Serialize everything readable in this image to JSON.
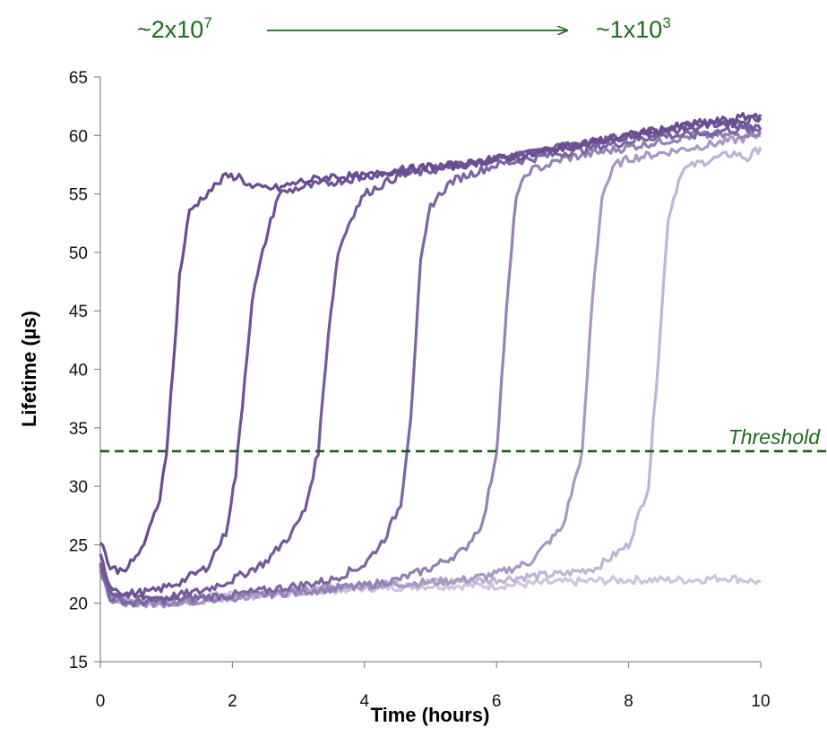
{
  "annotations": {
    "left_base": "~2x10",
    "left_exp": "7",
    "right_base": "~1x10",
    "right_exp": "3"
  },
  "threshold_label": "Threshold",
  "chart_data": {
    "type": "line",
    "xlabel": "Time (hours)",
    "ylabel": "Lifetime (µs)",
    "xlim": [
      0,
      10
    ],
    "ylim": [
      15,
      65
    ],
    "xticks": [
      0,
      2,
      4,
      6,
      8,
      10
    ],
    "yticks": [
      15,
      20,
      25,
      30,
      35,
      40,
      45,
      50,
      55,
      60,
      65
    ],
    "grid": false,
    "threshold": 33,
    "series_colors": [
      "#6a4d90",
      "#6f5395",
      "#755a9a",
      "#7d64a3",
      "#9482b3",
      "#a898c3",
      "#c0b4d6",
      "#cdc4dd"
    ],
    "series": [
      {
        "x": [
          0,
          0.15,
          0.3,
          0.5,
          0.7,
          0.9,
          1.0,
          1.1,
          1.2,
          1.35,
          1.6,
          1.9,
          2.1,
          2.3,
          2.7,
          3.0,
          3.5,
          4.0,
          4.5,
          5.0,
          5.5,
          6.0,
          6.5,
          7.0,
          7.5,
          8.0,
          8.5,
          9.0,
          9.5,
          10.0
        ],
        "y": [
          25.5,
          23,
          22.8,
          23.5,
          25.5,
          29,
          33,
          40,
          48,
          53.5,
          55,
          56.5,
          56.5,
          55.5,
          55.5,
          56,
          56.5,
          56.5,
          57,
          57.3,
          57.5,
          58,
          58.3,
          59,
          59.5,
          60,
          60.5,
          61,
          61.3,
          61.8
        ]
      },
      {
        "x": [
          0,
          0.15,
          0.4,
          0.8,
          1.2,
          1.6,
          1.9,
          2.05,
          2.15,
          2.3,
          2.5,
          2.7,
          3.0,
          3.5,
          4.0,
          4.5,
          5.0,
          5.5,
          6.0,
          6.5,
          7.0,
          7.5,
          8.0,
          8.5,
          9.0,
          9.5,
          10.0
        ],
        "y": [
          24,
          21.5,
          20.8,
          21,
          21.8,
          23,
          26,
          31,
          37,
          46,
          51,
          55,
          55.5,
          56,
          56.5,
          57,
          57.3,
          57.6,
          58,
          58.5,
          59,
          59.5,
          60,
          60.5,
          61,
          61,
          61.5
        ]
      },
      {
        "x": [
          0,
          0.15,
          0.5,
          1.0,
          1.5,
          2.0,
          2.5,
          2.9,
          3.1,
          3.3,
          3.45,
          3.6,
          3.8,
          4.0,
          4.5,
          5.0,
          5.5,
          6.0,
          6.5,
          7.0,
          7.5,
          8.0,
          8.5,
          9.0,
          9.5,
          10.0
        ],
        "y": [
          23.5,
          21,
          20.5,
          20.5,
          21,
          22,
          23.5,
          26,
          28,
          33,
          43,
          50,
          53,
          55,
          56.5,
          57,
          57.5,
          58,
          58.5,
          59,
          59.5,
          60,
          60.3,
          60.7,
          61,
          60.5
        ]
      },
      {
        "x": [
          0,
          0.15,
          0.5,
          1.0,
          2.0,
          3.0,
          3.5,
          4.0,
          4.3,
          4.55,
          4.7,
          4.85,
          5.0,
          5.3,
          5.5,
          6.0,
          6.5,
          7.0,
          7.5,
          8.0,
          8.5,
          9.0,
          9.5,
          10.0
        ],
        "y": [
          23,
          20.5,
          20,
          20.3,
          20.7,
          21.5,
          22,
          23.3,
          25.5,
          28.5,
          36,
          49,
          54,
          56,
          56.5,
          57.5,
          58,
          58.5,
          59,
          59.5,
          60,
          60,
          60.5,
          60.5
        ]
      },
      {
        "x": [
          0,
          0.15,
          0.5,
          1.0,
          2.0,
          3.0,
          4.0,
          4.5,
          5.0,
          5.5,
          5.8,
          6.0,
          6.15,
          6.3,
          6.5,
          6.8,
          7.0,
          7.5,
          8.0,
          8.5,
          9.0,
          9.5,
          10.0
        ],
        "y": [
          23,
          20.3,
          20,
          20,
          20.5,
          21,
          21.5,
          22,
          23,
          24.5,
          27,
          33,
          45,
          55,
          57,
          57.5,
          58,
          58.5,
          59,
          59.5,
          60,
          60,
          60.3
        ]
      },
      {
        "x": [
          0,
          0.15,
          0.5,
          1.0,
          2.0,
          3.0,
          4.0,
          5.0,
          5.5,
          6.0,
          6.5,
          7.0,
          7.3,
          7.45,
          7.6,
          7.8,
          8.0,
          8.5,
          9.0,
          9.5,
          10.0
        ],
        "y": [
          23,
          20.5,
          20,
          20,
          20.5,
          21,
          21.5,
          21.8,
          22,
          22.5,
          23.5,
          26.5,
          33,
          46,
          55,
          57.5,
          58,
          58.5,
          59,
          59.5,
          60
        ]
      },
      {
        "x": [
          0,
          0.15,
          0.5,
          1.0,
          2.0,
          3.0,
          4.0,
          5.0,
          6.0,
          6.5,
          7.0,
          7.5,
          8.0,
          8.3,
          8.45,
          8.6,
          8.8,
          9.0,
          9.3,
          9.6,
          9.8,
          10.0
        ],
        "y": [
          23,
          20.5,
          20,
          20,
          20.5,
          21,
          21.5,
          21.8,
          22,
          22.3,
          22.5,
          23,
          25,
          30,
          41,
          53,
          57,
          57.5,
          58,
          58.5,
          58,
          59
        ]
      },
      {
        "x": [
          0,
          0.15,
          0.5,
          1.0,
          2.0,
          3.0,
          4.0,
          5.0,
          6.0,
          7.0,
          8.0,
          9.0,
          9.5,
          10.0
        ],
        "y": [
          23,
          20.5,
          20,
          20.3,
          20.8,
          21,
          21.3,
          21.5,
          21.5,
          21.8,
          22,
          22,
          22.2,
          21.8
        ]
      }
    ]
  }
}
